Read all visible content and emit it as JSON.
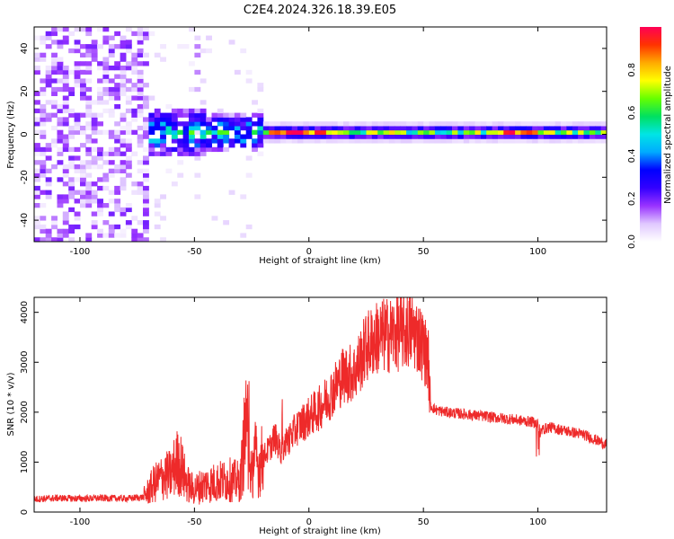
{
  "title": "C2E4.2024.326.18.39.E05",
  "chart_data": [
    {
      "type": "heatmap",
      "xlabel": "Height of straight line (km)",
      "ylabel": "Frequency (Hz)",
      "xlim": [
        -120,
        130
      ],
      "ylim": [
        -50,
        50
      ],
      "xticks": [
        "-100",
        "-50",
        "0",
        "50",
        "100"
      ],
      "xtick_values": [
        -100,
        -50,
        0,
        50,
        100
      ],
      "yticks": [
        "-40",
        "-20",
        "0",
        "20",
        "40"
      ],
      "ytick_values": [
        -40,
        -20,
        0,
        20,
        40
      ],
      "colorbar": {
        "label": "Normalized spectral amplitude",
        "range": [
          0,
          1
        ],
        "ticks": [
          "0.0",
          "0.2",
          "0.4",
          "0.6",
          "0.8"
        ],
        "tick_values": [
          0,
          0.2,
          0.4,
          0.6,
          0.8
        ],
        "colormap": [
          "#ffffff",
          "#e0c8ff",
          "#9933ff",
          "#3300ff",
          "#0000ff",
          "#00aaff",
          "#00e5e5",
          "#00e060",
          "#66ff00",
          "#ffff00",
          "#ffaa00",
          "#ff3300",
          "#ff0055"
        ]
      },
      "regions": [
        {
          "x": [
            -120,
            -72
          ],
          "freq": [
            -50,
            50
          ],
          "amplitude": "noise 0.05-0.25"
        },
        {
          "x": [
            -72,
            -20
          ],
          "freq": [
            -8,
            10
          ],
          "amplitude": "0.2-0.6"
        },
        {
          "x": [
            -20,
            130
          ],
          "freq": [
            -3,
            3
          ],
          "amplitude": "0.4-1.0"
        }
      ]
    },
    {
      "type": "line",
      "xlabel": "Height of straight line (km)",
      "ylabel": "SNR (10 * v/v)",
      "xlim": [
        -120,
        130
      ],
      "ylim": [
        0,
        4300
      ],
      "xticks": [
        "-100",
        "-50",
        "0",
        "50",
        "100"
      ],
      "xtick_values": [
        -100,
        -50,
        0,
        50,
        100
      ],
      "yticks": [
        "0",
        "1000",
        "2000",
        "3000",
        "4000"
      ],
      "ytick_values": [
        0,
        1000,
        2000,
        3000,
        4000
      ],
      "color": "#ee2a2a",
      "x": [
        -120,
        -110,
        -100,
        -90,
        -80,
        -72,
        -68,
        -64,
        -60,
        -58,
        -56,
        -54,
        -52,
        -50,
        -48,
        -45,
        -40,
        -35,
        -30,
        -27,
        -26,
        -25,
        -24,
        -22,
        -20,
        -17,
        -15,
        -12,
        -10,
        -8,
        -5,
        0,
        5,
        10,
        15,
        20,
        25,
        30,
        35,
        40,
        45,
        48,
        50,
        52,
        53,
        55,
        60,
        70,
        80,
        90,
        98,
        100,
        101,
        102,
        105,
        110,
        115,
        120,
        125,
        130
      ],
      "y": [
        260,
        280,
        270,
        280,
        270,
        300,
        550,
        700,
        750,
        1000,
        950,
        650,
        500,
        450,
        500,
        550,
        600,
        650,
        600,
        2000,
        700,
        600,
        1200,
        900,
        1100,
        1300,
        1500,
        1200,
        1400,
        1500,
        1700,
        1900,
        2100,
        2400,
        2750,
        2800,
        3300,
        3500,
        3550,
        3600,
        3650,
        3500,
        3300,
        3100,
        2150,
        2050,
        2000,
        1950,
        1900,
        1850,
        1800,
        1750,
        1600,
        1650,
        1700,
        1650,
        1600,
        1550,
        1450,
        1350
      ]
    }
  ]
}
